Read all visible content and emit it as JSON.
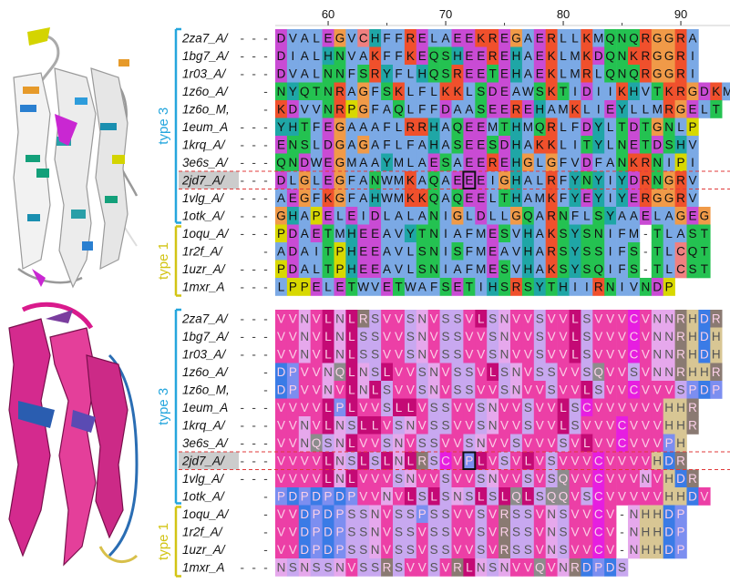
{
  "ruler": {
    "start_pos": 56,
    "labels": [
      60,
      70,
      80,
      90
    ]
  },
  "group_labels": {
    "type3": "type 3",
    "type1": "type 1"
  },
  "colors": {
    "type3": "#25a6dd",
    "type1": "#d2c414",
    "highlight_row": "#cccccc",
    "divider": "#e03a3a",
    "box": "#111111"
  },
  "top_alignment": {
    "rows": [
      {
        "label": "2za7_A/",
        "seq": "---DVALEGVCHFFRELAEEKREGAERLLKMQNQRGGRA"
      },
      {
        "label": "1bg7_A/",
        "seq": "---DIALHNVAKFFKEQSHEEREHAEKLMKDQNKRGGRI"
      },
      {
        "label": "1r03_A/",
        "seq": "---DVALNNFSRYFLHQSREETEHAEKLMRLQNQRGGRI"
      },
      {
        "label": "1z6o_A/",
        "seq": "-NYQTNRAGFSKLFLKKLSDEAWSKTIDIIKHVTKRGDKM"
      },
      {
        "label": "1z6o_M,",
        "seq": "-KDVVNRPGFAQLFFDAASEEREHAMKLIEYLLMRGELT"
      },
      {
        "label": "1eum_A",
        "seq": "---YHTFEGAAAFLRRHAQEEMTHMQRLFDYLTDTGNLP"
      },
      {
        "label": "1krq_A/",
        "seq": "---ENSLDGAGAFLFAHASEESDHAKKLITYLNETDSHV"
      },
      {
        "label": "3e6s_A/",
        "seq": "---QNDWEGMAAYMLAESAEEREHGLGFVDFANKRNIPI"
      },
      {
        "label": "2jd7_A/",
        "seq": "---DLGLEGFANWMKAQAEEEIGHALRFYNYIYDRNGRV"
      },
      {
        "label": "1vlg_A/",
        "seq": "---AEGFKGFAHWMKKQAQEELTHAMKFYEYIYERGGRV"
      },
      {
        "label": "1otk_A/",
        "seq": "---GHAPELEIDLALANIGLDLLGQARNFLSYAAELAGEG"
      },
      {
        "label": "1oqu_A/",
        "seq": "---PDAETMHEEAVYTNIAFMESVHAKSYSNIFM-TLAST"
      },
      {
        "label": "1r2f_A/",
        "seq": "-ADAITPHEEAVLSNISFMEAVHARSYSSIFS-TLCQT"
      },
      {
        "label": "1uzr_A/",
        "seq": "---PDALTPHEEAVLSNIAFMESVHAKSYSQIFS-TLCST"
      },
      {
        "label": "1mxr_A",
        "seq": "---LPPELETWVETWAFSETIHSRSYTHIIRNIVNDP"
      }
    ]
  },
  "bottom_alignment": {
    "rows": [
      {
        "label": "2za7_A/",
        "seq": "---VVNVLNLRSVVSNVSSVLSNVVSVVLSVVVCVNNRHDR"
      },
      {
        "label": "1bg7_A/",
        "seq": "---VVNVLNLSSVVSNVSSVVSNVVSVVLSVVVCVNNRHDH"
      },
      {
        "label": "1r03_A/",
        "seq": "---VVNVLNLSSVVSNVSSVVSNVVSVVLSVVVCVNNRHDH"
      },
      {
        "label": "1z6o_A/",
        "seq": "-DPVVNQLNSLVVSNVSSVLSNVSSVVSQVVSVNNRHHR"
      },
      {
        "label": "1z6o_M,",
        "seq": "-DPVVNVLNLSVVSNVSSVVSNVVSVVLSVVCVVVSPDP"
      },
      {
        "label": "1eum_A",
        "seq": "---VVVVLPLVVSLLVSSVVSNVVSVVLSCVVVVVVHHR"
      },
      {
        "label": "1krq_A/",
        "seq": "---VVNVLNSLLVSNVSSVVSNVVSVVLSVVVCVVVHHR"
      },
      {
        "label": "3e6s_A/",
        "seq": "---VVNQSNLVVSNVSSVVSNVVSVVVSVLVVCVVVPH"
      },
      {
        "label": "2jd7_A/",
        "seq": "---VVVVLNSLSLNLRSCVPLVSVLVSVVVCVVVVHDR"
      },
      {
        "label": "1vlg_A/",
        "seq": "---VVVVLNLVVVSNVVSVVSNVVSVSQVVCVVVNVHDR"
      },
      {
        "label": "1otk_A/",
        "seq": "-PDPDPDPVVNVLSLSNSLSLQLSQQVSCVVVVVHHDV"
      },
      {
        "label": "1oqu_A/",
        "seq": "-VVDPDPSSNVSSPSSVVSVRSSVNSVVCV-NHHDP"
      },
      {
        "label": "1r2f_A/",
        "seq": "-VVDPDPSSNVSSVSSVVSVRSSVNSVVCV-NHHDP"
      },
      {
        "label": "1uzr_A/",
        "seq": "-VVDPDPSSNVSSVSSVVSVRSSVNSVVCV-NHHDP"
      },
      {
        "label": "1mxr_A",
        "seq": "---NSNSSNVSSRSVVSVRLNSNVVQVNRDPDS"
      }
    ]
  }
}
